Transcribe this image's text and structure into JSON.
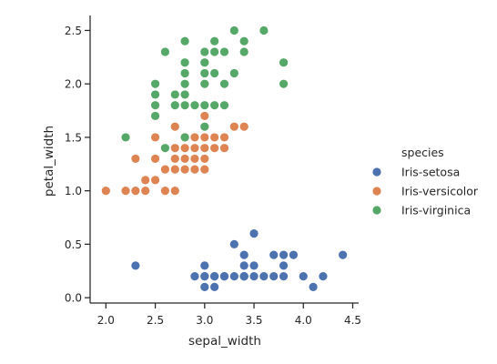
{
  "chart_data": {
    "type": "scatter",
    "xlabel": "sepal_width",
    "ylabel": "petal_width",
    "xlim": [
      1.84,
      4.56
    ],
    "ylim": [
      -0.05,
      2.64
    ],
    "xticks": [
      "2.0",
      "2.5",
      "3.0",
      "3.5",
      "4.0",
      "4.5"
    ],
    "yticks": [
      "0.0",
      "0.5",
      "1.0",
      "1.5",
      "2.0",
      "2.5"
    ],
    "grid": false,
    "legend": {
      "title": "species",
      "placement": "right"
    },
    "series": [
      {
        "name": "Iris-setosa",
        "color": "#4c72b0",
        "points": [
          [
            2.3,
            0.3
          ],
          [
            2.9,
            0.2
          ],
          [
            3.0,
            0.2
          ],
          [
            3.0,
            0.1
          ],
          [
            3.0,
            0.3
          ],
          [
            3.1,
            0.2
          ],
          [
            3.1,
            0.1
          ],
          [
            3.1,
            0.2
          ],
          [
            3.2,
            0.2
          ],
          [
            3.2,
            0.2
          ],
          [
            3.3,
            0.5
          ],
          [
            3.3,
            0.2
          ],
          [
            3.4,
            0.2
          ],
          [
            3.4,
            0.4
          ],
          [
            3.4,
            0.3
          ],
          [
            3.4,
            0.2
          ],
          [
            3.5,
            0.6
          ],
          [
            3.5,
            0.3
          ],
          [
            3.5,
            0.2
          ],
          [
            3.6,
            0.2
          ],
          [
            3.7,
            0.2
          ],
          [
            3.7,
            0.4
          ],
          [
            3.8,
            0.4
          ],
          [
            3.8,
            0.3
          ],
          [
            3.8,
            0.2
          ],
          [
            3.9,
            0.4
          ],
          [
            4.0,
            0.2
          ],
          [
            4.1,
            0.1
          ],
          [
            4.2,
            0.2
          ],
          [
            4.4,
            0.4
          ],
          [
            3.4,
            0.2
          ],
          [
            3.0,
            0.2
          ]
        ]
      },
      {
        "name": "Iris-versicolor",
        "color": "#dd8452",
        "points": [
          [
            2.0,
            1.0
          ],
          [
            2.2,
            1.0
          ],
          [
            2.3,
            1.0
          ],
          [
            2.3,
            1.3
          ],
          [
            2.4,
            1.0
          ],
          [
            2.4,
            1.1
          ],
          [
            2.5,
            1.1
          ],
          [
            2.5,
            1.5
          ],
          [
            2.5,
            1.3
          ],
          [
            2.6,
            1.2
          ],
          [
            2.6,
            1.0
          ],
          [
            2.7,
            1.0
          ],
          [
            2.7,
            1.2
          ],
          [
            2.7,
            1.3
          ],
          [
            2.7,
            1.4
          ],
          [
            2.7,
            1.6
          ],
          [
            2.8,
            1.2
          ],
          [
            2.8,
            1.3
          ],
          [
            2.8,
            1.4
          ],
          [
            2.8,
            1.5
          ],
          [
            2.9,
            1.3
          ],
          [
            2.9,
            1.4
          ],
          [
            2.9,
            1.5
          ],
          [
            2.9,
            1.2
          ],
          [
            3.0,
            1.2
          ],
          [
            3.0,
            1.3
          ],
          [
            3.0,
            1.4
          ],
          [
            3.0,
            1.5
          ],
          [
            3.0,
            1.7
          ],
          [
            3.1,
            1.4
          ],
          [
            3.1,
            1.5
          ],
          [
            3.2,
            1.4
          ],
          [
            3.2,
            1.5
          ],
          [
            3.3,
            1.6
          ],
          [
            3.4,
            1.6
          ]
        ]
      },
      {
        "name": "Iris-virginica",
        "color": "#55a868",
        "points": [
          [
            2.2,
            1.5
          ],
          [
            2.5,
            2.0
          ],
          [
            2.5,
            1.9
          ],
          [
            2.5,
            1.8
          ],
          [
            2.5,
            1.7
          ],
          [
            2.6,
            2.3
          ],
          [
            2.6,
            1.4
          ],
          [
            2.7,
            1.9
          ],
          [
            2.7,
            1.8
          ],
          [
            2.8,
            2.4
          ],
          [
            2.8,
            2.2
          ],
          [
            2.8,
            2.1
          ],
          [
            2.8,
            2.0
          ],
          [
            2.8,
            1.9
          ],
          [
            2.8,
            1.8
          ],
          [
            2.8,
            1.5
          ],
          [
            2.9,
            1.8
          ],
          [
            3.0,
            2.3
          ],
          [
            3.0,
            2.2
          ],
          [
            3.0,
            2.1
          ],
          [
            3.0,
            2.0
          ],
          [
            3.0,
            1.8
          ],
          [
            3.0,
            1.6
          ],
          [
            3.1,
            2.4
          ],
          [
            3.1,
            2.3
          ],
          [
            3.1,
            2.1
          ],
          [
            3.1,
            1.8
          ],
          [
            3.2,
            2.3
          ],
          [
            3.2,
            2.0
          ],
          [
            3.2,
            1.8
          ],
          [
            3.3,
            2.5
          ],
          [
            3.3,
            2.1
          ],
          [
            3.4,
            2.4
          ],
          [
            3.4,
            2.3
          ],
          [
            3.6,
            2.5
          ],
          [
            3.8,
            2.2
          ],
          [
            3.8,
            2.0
          ]
        ]
      }
    ]
  }
}
